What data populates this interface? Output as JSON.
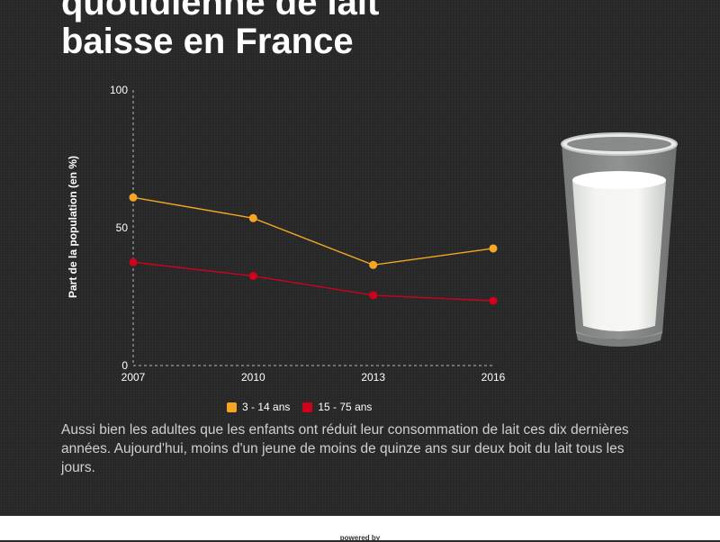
{
  "title": {
    "line1": "quotidienne de lait",
    "line2": "baisse en France"
  },
  "description": "Aussi bien les adultes que les enfants ont réduit leur consommation de lait ces dix dernières années. Aujourd'hui, moins d'un jeune de moins de quinze ans sur deux boit du lait tous les jours.",
  "footer": {
    "powered_by": "powered by"
  },
  "chart_data": {
    "type": "line",
    "x": [
      "2007",
      "2010",
      "2013",
      "2016"
    ],
    "ylabel": "Part de la population (en %)",
    "ylim": [
      0,
      100
    ],
    "yticks": [
      "0",
      "50",
      "100"
    ],
    "grid": false,
    "legend_position": "bottom",
    "series": [
      {
        "name": "3 - 14 ans",
        "color": "#f5a623",
        "values": [
          61,
          53.5,
          36.5,
          42.5
        ]
      },
      {
        "name": "15 - 75 ans",
        "color": "#d0021b",
        "values": [
          37.5,
          32.5,
          25.5,
          23.5
        ]
      }
    ]
  }
}
